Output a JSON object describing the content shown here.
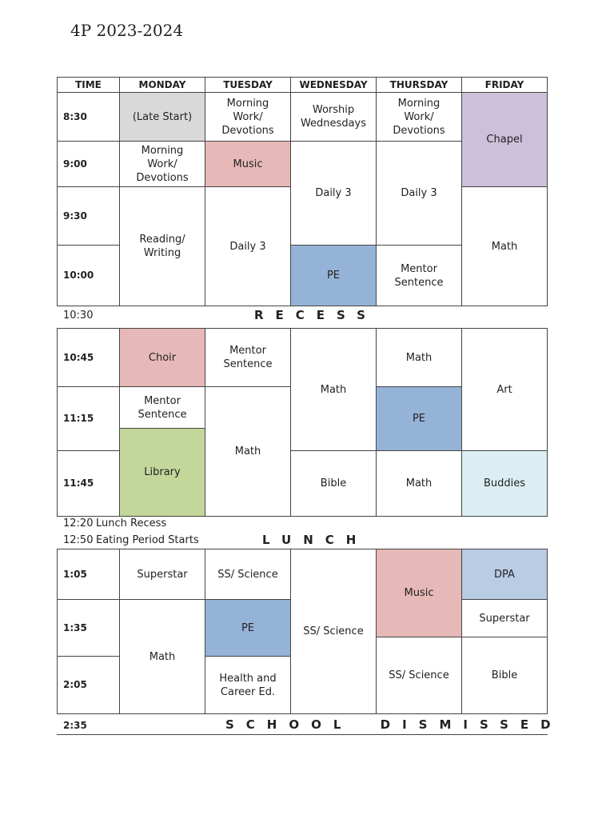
{
  "title": "4P 2023-2024",
  "header": [
    "TIME",
    "MONDAY",
    "TUESDAY",
    "WEDNESDAY",
    "THURSDAY",
    "FRIDAY"
  ],
  "blocks": [
    {
      "times": [
        "8:30",
        "9:00",
        "9:30",
        "10:00"
      ],
      "cells": [
        {
          "lines": [
            "(Late Start)"
          ]
        },
        {
          "lines": [
            "Morning",
            "Work/",
            "Devotions"
          ]
        },
        {
          "lines": [
            "Reading/",
            "Writing"
          ]
        },
        {
          "lines": [
            "Morning",
            "Work/",
            "Devotions"
          ]
        },
        {
          "lines": [
            "Music"
          ]
        },
        {
          "lines": [
            "Daily 3"
          ]
        },
        {
          "lines": [
            "Worship",
            "Wednesdays"
          ]
        },
        {
          "lines": [
            "Daily 3"
          ]
        },
        {
          "lines": [
            "PE"
          ]
        },
        {
          "lines": [
            "Morning",
            "Work/",
            "Devotions"
          ]
        },
        {
          "lines": [
            "Daily 3"
          ]
        },
        {
          "lines": [
            "Mentor",
            "Sentence"
          ]
        },
        {
          "lines": [
            "Chapel"
          ]
        },
        {
          "lines": [
            "Math"
          ]
        }
      ]
    },
    {
      "times": [
        "10:45",
        "11:15",
        "11:45"
      ],
      "cells": [
        {
          "lines": [
            "Choir"
          ]
        },
        {
          "lines": [
            "Mentor",
            "Sentence"
          ]
        },
        {
          "lines": [
            "Library"
          ]
        },
        {
          "lines": [
            "Mentor",
            "Sentence"
          ]
        },
        {
          "lines": [
            "Math"
          ]
        },
        {
          "lines": [
            "Math"
          ]
        },
        {
          "lines": [
            "Bible"
          ]
        },
        {
          "lines": [
            "Math"
          ]
        },
        {
          "lines": [
            "PE"
          ]
        },
        {
          "lines": [
            "Math"
          ]
        },
        {
          "lines": [
            "Art"
          ]
        },
        {
          "lines": [
            "Buddies"
          ]
        }
      ]
    },
    {
      "times": [
        "1:05",
        "1:35",
        "2:05"
      ],
      "cells": [
        {
          "lines": [
            "Superstar"
          ]
        },
        {
          "lines": [
            "Math"
          ]
        },
        {
          "lines": [
            "SS/ Science"
          ]
        },
        {
          "lines": [
            "PE"
          ]
        },
        {
          "lines": [
            "Health and",
            "Career Ed."
          ]
        },
        {
          "lines": [
            "SS/ Science"
          ]
        },
        {
          "lines": [
            "Music"
          ]
        },
        {
          "lines": [
            "SS/ Science"
          ]
        },
        {
          "lines": [
            "DPA"
          ]
        },
        {
          "lines": [
            "Superstar"
          ]
        },
        {
          "lines": [
            "Bible"
          ]
        }
      ]
    }
  ],
  "recess": {
    "time": "10:30",
    "label": "RECESS"
  },
  "lunch": {
    "notes": [
      {
        "time": "12:20",
        "label": "Lunch Recess"
      },
      {
        "time": "12:50",
        "label": "Eating Period Starts"
      }
    ],
    "label": "LUNCH"
  },
  "dismissal": {
    "time": "2:35",
    "label": "SCHOOL DISMISSED"
  }
}
